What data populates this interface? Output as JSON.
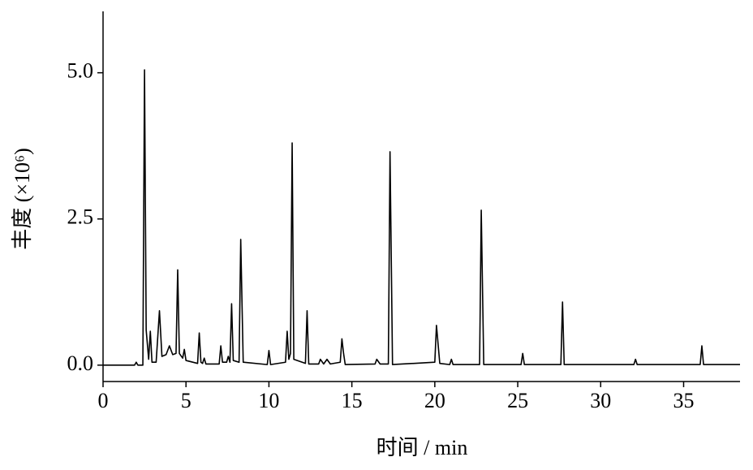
{
  "chart_data": {
    "type": "line",
    "xlabel": "时间 / min",
    "ylabel": "丰度 (×10⁶)",
    "xlim": [
      0,
      38.4
    ],
    "ylim": [
      -0.28,
      6.05
    ],
    "xticks": [
      0,
      5,
      10,
      15,
      20,
      25,
      30,
      35
    ],
    "yticks": [
      {
        "value": 0,
        "label": "0.0"
      },
      {
        "value": 2.5,
        "label": "2.5"
      },
      {
        "value": 5,
        "label": "5.0"
      }
    ],
    "grid": false,
    "series": [
      {
        "color": "#000000",
        "x": [
          0,
          1.9,
          2.0,
          2.1,
          2.4,
          2.5,
          2.6,
          2.75,
          2.85,
          2.95,
          3.2,
          3.4,
          3.55,
          3.8,
          4.0,
          4.2,
          4.4,
          4.5,
          4.6,
          4.8,
          4.9,
          5.0,
          5.7,
          5.8,
          5.9,
          6.0,
          6.1,
          6.2,
          7.0,
          7.1,
          7.2,
          7.45,
          7.55,
          7.65,
          7.75,
          7.85,
          8.2,
          8.3,
          8.45,
          9.9,
          10.0,
          10.1,
          11.0,
          11.1,
          11.2,
          11.3,
          11.4,
          11.5,
          12.2,
          12.3,
          12.4,
          13.0,
          13.1,
          13.3,
          13.5,
          13.7,
          14.3,
          14.4,
          14.5,
          14.6,
          16.4,
          16.5,
          16.7,
          17.2,
          17.3,
          17.45,
          20.0,
          20.1,
          20.3,
          20.9,
          21.0,
          21.1,
          22.7,
          22.8,
          22.95,
          25.2,
          25.3,
          25.4,
          27.6,
          27.7,
          27.8,
          32.0,
          32.1,
          32.2,
          36.0,
          36.1,
          36.2,
          38.4
        ],
        "values": [
          0,
          0,
          0.05,
          0,
          0,
          5.05,
          0.6,
          0.1,
          0.58,
          0.05,
          0.05,
          0.93,
          0.15,
          0.18,
          0.33,
          0.18,
          0.2,
          1.63,
          0.2,
          0.12,
          0.27,
          0.08,
          0.03,
          0.55,
          0.05,
          0.03,
          0.12,
          0.02,
          0.02,
          0.33,
          0.05,
          0.05,
          0.15,
          0.05,
          1.05,
          0.08,
          0.05,
          2.15,
          0.05,
          0.01,
          0.25,
          0.01,
          0.05,
          0.58,
          0.1,
          0.2,
          3.8,
          0.1,
          0.03,
          0.93,
          0.02,
          0.02,
          0.1,
          0.02,
          0.1,
          0.02,
          0.05,
          0.45,
          0.2,
          0.01,
          0.02,
          0.1,
          0.02,
          0.02,
          3.65,
          0.01,
          0.05,
          0.68,
          0.03,
          0.01,
          0.1,
          0.01,
          0.01,
          2.65,
          0.01,
          0.01,
          0.2,
          0.01,
          0.01,
          1.08,
          0.01,
          0.01,
          0.1,
          0.01,
          0.01,
          0.33,
          0.01,
          0.01
        ]
      }
    ]
  }
}
